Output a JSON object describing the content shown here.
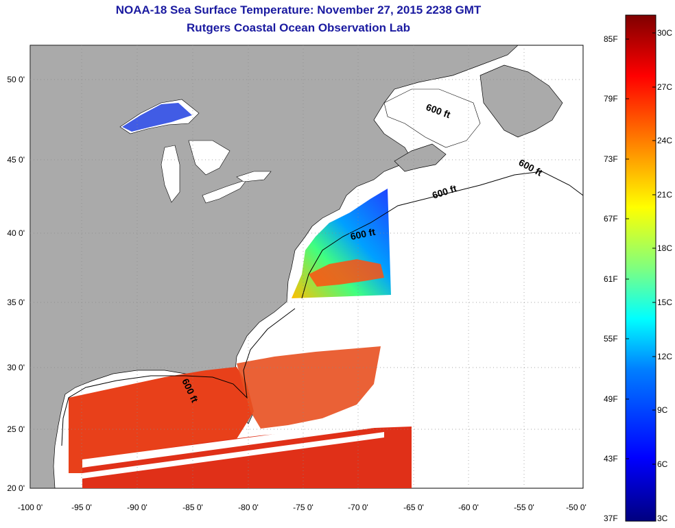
{
  "title": {
    "line1": "NOAA-18 Sea Surface Temperature:  November 27, 2015 2238 GMT",
    "line2": "Rutgers Coastal Ocean Observation Lab"
  },
  "map": {
    "lat_labels": [
      "50 0'",
      "45 0'",
      "40 0'",
      "35 0'",
      "30 0'",
      "25 0'",
      "20 0'"
    ],
    "lon_labels": [
      "-100 0'",
      "-95 0'",
      "-90 0'",
      "-85 0'",
      "-80 0'",
      "-75 0'",
      "-70 0'",
      "-65 0'",
      "-60 0'",
      "-55 0'",
      "-50 0'"
    ],
    "contour_label": "600 ft",
    "colors": {
      "land": "#aaaaaa",
      "ocean_no_data": "#ffffff",
      "title": "#1a1aa0"
    }
  },
  "colorbar": {
    "fahrenheit_labels": [
      "85F",
      "79F",
      "73F",
      "67F",
      "61F",
      "55F",
      "49F",
      "43F",
      "37F"
    ],
    "celsius_labels": [
      "30C",
      "27C",
      "24C",
      "21C",
      "18C",
      "15C",
      "12C",
      "9C",
      "6C",
      "3C"
    ],
    "colors": [
      "#00007f",
      "#0000ff",
      "#007fff",
      "#00ffff",
      "#7fff7f",
      "#ffff00",
      "#ff7f00",
      "#ff0000",
      "#7f0000"
    ]
  }
}
